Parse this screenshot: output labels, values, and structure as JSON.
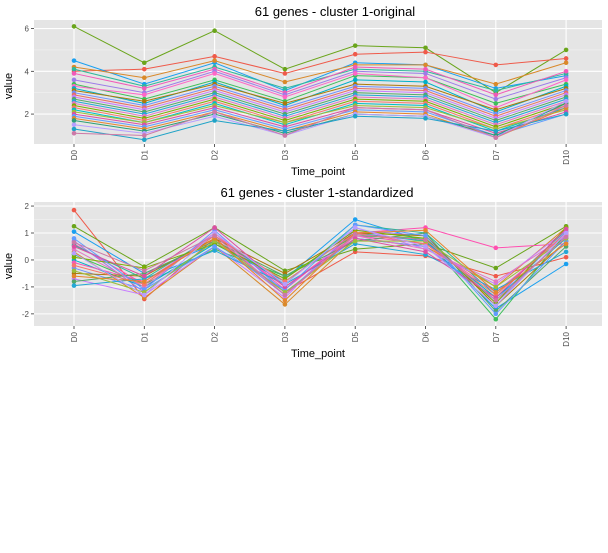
{
  "chart_data": [
    {
      "type": "line",
      "title": "61  genes -  cluster 1-original",
      "xlabel": "Time_point",
      "ylabel": "value",
      "categories": [
        "D0",
        "D1",
        "D2",
        "D3",
        "D5",
        "D6",
        "D7",
        "D10"
      ],
      "ylim": [
        0.6,
        6.4
      ],
      "yticks": [
        2,
        4,
        6
      ],
      "grid": true,
      "legend": "none",
      "panel_background": "#e5e5e5",
      "series": [
        {
          "color": "#6aa51b",
          "values": [
            6.1,
            4.4,
            5.9,
            4.1,
            5.2,
            5.1,
            3.0,
            5.0
          ]
        },
        {
          "color": "#ef5a4a",
          "values": [
            4.0,
            4.1,
            4.7,
            3.9,
            4.8,
            4.9,
            4.3,
            4.6
          ]
        },
        {
          "color": "#1aa0f0",
          "values": [
            4.5,
            3.4,
            4.4,
            3.1,
            4.4,
            4.3,
            3.2,
            3.8
          ]
        },
        {
          "color": "#d9892a",
          "values": [
            4.2,
            3.7,
            4.5,
            3.5,
            4.3,
            4.3,
            3.4,
            4.4
          ]
        },
        {
          "color": "#2fb89a",
          "values": [
            4.1,
            3.3,
            4.2,
            3.2,
            4.1,
            4.0,
            3.1,
            3.9
          ]
        },
        {
          "color": "#f15ab9",
          "values": [
            3.9,
            3.2,
            4.1,
            3.0,
            4.2,
            4.1,
            2.9,
            4.0
          ]
        },
        {
          "color": "#9d7ce8",
          "values": [
            3.6,
            3.0,
            4.0,
            2.9,
            4.0,
            3.9,
            2.7,
            3.7
          ]
        },
        {
          "color": "#3ebf5a",
          "values": [
            3.4,
            2.7,
            3.6,
            2.6,
            3.8,
            3.7,
            2.5,
            3.4
          ]
        },
        {
          "color": "#ff66c7",
          "values": [
            3.3,
            2.9,
            3.9,
            2.8,
            3.9,
            3.7,
            2.3,
            3.6
          ]
        },
        {
          "color": "#00b0c8",
          "values": [
            3.2,
            2.5,
            3.5,
            2.4,
            3.6,
            3.5,
            2.1,
            3.3
          ]
        },
        {
          "color": "#ab7a0c",
          "values": [
            3.1,
            2.6,
            3.4,
            2.5,
            3.4,
            3.3,
            2.2,
            3.2
          ]
        },
        {
          "color": "#6f8fff",
          "values": [
            3.0,
            2.4,
            3.3,
            2.3,
            3.3,
            3.2,
            2.0,
            3.1
          ]
        },
        {
          "color": "#e86f61",
          "values": [
            2.9,
            2.3,
            3.2,
            2.2,
            3.2,
            3.1,
            1.9,
            3.0
          ]
        },
        {
          "color": "#c77cff",
          "values": [
            2.8,
            2.2,
            3.1,
            2.1,
            3.1,
            3.0,
            1.8,
            2.9
          ]
        },
        {
          "color": "#55a868",
          "values": [
            2.7,
            2.1,
            3.0,
            2.0,
            3.0,
            2.9,
            1.7,
            2.8
          ]
        },
        {
          "color": "#24a7d6",
          "values": [
            2.6,
            2.0,
            2.9,
            1.9,
            2.9,
            2.8,
            1.6,
            2.7
          ]
        },
        {
          "color": "#e377c2",
          "values": [
            2.5,
            1.9,
            2.8,
            1.8,
            2.8,
            2.7,
            1.5,
            2.6
          ]
        },
        {
          "color": "#7cae00",
          "values": [
            2.4,
            1.8,
            2.7,
            1.7,
            2.7,
            2.6,
            1.4,
            2.5
          ]
        },
        {
          "color": "#f8766d",
          "values": [
            2.3,
            1.7,
            2.6,
            1.6,
            2.6,
            2.5,
            1.3,
            2.4
          ]
        },
        {
          "color": "#00bfc4",
          "values": [
            2.2,
            1.6,
            2.5,
            1.5,
            2.5,
            2.4,
            1.2,
            2.3
          ]
        },
        {
          "color": "#9ebd3a",
          "values": [
            2.1,
            1.6,
            2.4,
            1.6,
            2.4,
            2.3,
            1.3,
            2.2
          ]
        },
        {
          "color": "#dd4fa3",
          "values": [
            2.0,
            1.5,
            2.3,
            1.4,
            2.3,
            2.2,
            1.1,
            2.1
          ]
        },
        {
          "color": "#619cff",
          "values": [
            1.9,
            1.4,
            2.2,
            1.3,
            2.2,
            2.1,
            1.0,
            2.0
          ]
        },
        {
          "color": "#e5862d",
          "values": [
            1.8,
            1.3,
            2.1,
            1.2,
            2.1,
            2.0,
            0.9,
            2.3
          ]
        },
        {
          "color": "#2c9f77",
          "values": [
            1.7,
            1.2,
            2.0,
            1.1,
            2.0,
            1.9,
            1.0,
            2.5
          ]
        },
        {
          "color": "#b79dff",
          "values": [
            1.5,
            1.1,
            1.9,
            1.0,
            2.0,
            1.9,
            0.9,
            2.6
          ]
        },
        {
          "color": "#1fa3c7",
          "values": [
            1.3,
            0.8,
            1.7,
            1.2,
            1.9,
            1.8,
            1.2,
            2.0
          ]
        },
        {
          "color": "#cc79a7",
          "values": [
            1.1,
            1.0,
            2.1,
            1.0,
            2.3,
            2.2,
            0.9,
            2.4
          ]
        }
      ]
    },
    {
      "type": "line",
      "title": "61  genes -  cluster 1-standardized",
      "xlabel": "Time_point",
      "ylabel": "value",
      "categories": [
        "D0",
        "D1",
        "D2",
        "D3",
        "D5",
        "D6",
        "D7",
        "D10"
      ],
      "ylim": [
        -2.45,
        2.15
      ],
      "yticks": [
        -2,
        -1,
        0,
        1,
        2
      ],
      "grid": true,
      "legend": "none",
      "panel_background": "#e5e5e5",
      "series": [
        {
          "color": "#ef5a4a",
          "values": [
            1.85,
            -1.45,
            0.8,
            -1.2,
            0.3,
            0.15,
            -0.6,
            0.1
          ]
        },
        {
          "color": "#6aa51b",
          "values": [
            1.25,
            -0.25,
            1.2,
            -0.4,
            0.4,
            0.6,
            -0.3,
            1.25
          ]
        },
        {
          "color": "#1aa0f0",
          "values": [
            1.05,
            -0.5,
            0.6,
            -0.7,
            1.5,
            0.7,
            -1.8,
            -0.15
          ]
        },
        {
          "color": "#ff4fb0",
          "values": [
            0.6,
            -0.9,
            1.0,
            -1.1,
            1.0,
            1.2,
            0.45,
            0.6
          ]
        },
        {
          "color": "#2fb89a",
          "values": [
            0.55,
            -0.7,
            0.9,
            -0.9,
            1.3,
            1.0,
            -1.3,
            1.1
          ]
        },
        {
          "color": "#9d7ce8",
          "values": [
            0.7,
            -1.2,
            0.7,
            -1.3,
            1.1,
            0.9,
            -1.6,
            0.9
          ]
        },
        {
          "color": "#d9892a",
          "values": [
            0.3,
            -1.4,
            0.5,
            -1.65,
            0.8,
            0.5,
            -1.0,
            1.2
          ]
        },
        {
          "color": "#3ebf5a",
          "values": [
            0.2,
            -0.9,
            0.4,
            -0.6,
            0.9,
            0.8,
            -2.2,
            1.0
          ]
        },
        {
          "color": "#00b0c8",
          "values": [
            0.0,
            -1.0,
            0.6,
            -0.8,
            1.0,
            0.7,
            -1.4,
            0.8
          ]
        },
        {
          "color": "#f15ab9",
          "values": [
            -0.1,
            -0.8,
            0.9,
            -1.0,
            0.9,
            0.6,
            -1.2,
            0.95
          ]
        },
        {
          "color": "#6f8fff",
          "values": [
            -0.3,
            -1.1,
            1.1,
            -1.2,
            0.8,
            0.5,
            -1.5,
            1.05
          ]
        },
        {
          "color": "#ab7a0c",
          "values": [
            -0.5,
            -0.6,
            0.8,
            -0.5,
            1.0,
            0.9,
            -1.7,
            0.7
          ]
        },
        {
          "color": "#c77cff",
          "values": [
            -0.7,
            -1.3,
            0.5,
            -1.4,
            1.2,
            0.4,
            -0.9,
            1.1
          ]
        },
        {
          "color": "#55a868",
          "values": [
            -0.8,
            -0.5,
            0.7,
            -0.6,
            0.7,
            1.0,
            -1.9,
            0.5
          ]
        },
        {
          "color": "#24a7d6",
          "values": [
            -0.95,
            -0.7,
            0.35,
            -0.9,
            0.6,
            0.2,
            -1.1,
            0.3
          ]
        },
        {
          "color": "#e377c2",
          "values": [
            0.4,
            -1.0,
            1.0,
            -1.3,
            0.9,
            0.4,
            -0.8,
            0.9
          ]
        },
        {
          "color": "#7cae00",
          "values": [
            0.1,
            -0.3,
            0.6,
            -0.7,
            1.1,
            0.8,
            -1.6,
            1.2
          ]
        },
        {
          "color": "#f8766d",
          "values": [
            -0.2,
            -0.9,
            0.9,
            -0.8,
            1.0,
            0.6,
            -1.3,
            1.0
          ]
        },
        {
          "color": "#619cff",
          "values": [
            0.8,
            -1.1,
            0.5,
            -1.1,
            1.3,
            0.9,
            -2.0,
            0.7
          ]
        },
        {
          "color": "#dd4fa3",
          "values": [
            0.5,
            -0.6,
            1.2,
            -1.0,
            0.8,
            0.3,
            -1.4,
            1.15
          ]
        },
        {
          "color": "#9ebd3a",
          "values": [
            -0.4,
            -1.2,
            0.7,
            -1.2,
            0.7,
            0.7,
            -1.0,
            0.8
          ]
        },
        {
          "color": "#e5862d",
          "values": [
            -0.6,
            -0.8,
            0.8,
            -1.5,
            1.0,
            1.1,
            -1.2,
            0.6
          ]
        },
        {
          "color": "#b79dff",
          "values": [
            0.25,
            -1.3,
            1.0,
            -0.9,
            1.2,
            0.5,
            -1.7,
            1.0
          ]
        },
        {
          "color": "#cc79a7",
          "values": [
            0.65,
            -0.4,
            0.9,
            -1.3,
            0.95,
            0.75,
            -1.5,
            0.85
          ]
        }
      ]
    }
  ]
}
